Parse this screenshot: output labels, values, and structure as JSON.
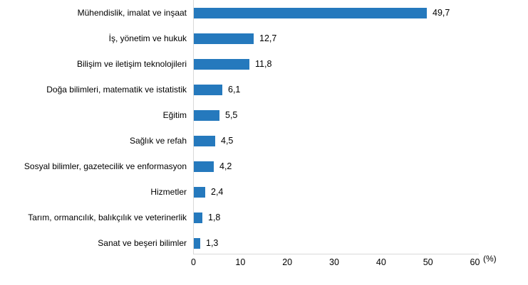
{
  "chart_data": {
    "type": "bar",
    "orientation": "horizontal",
    "title": "",
    "categories": [
      "Mühendislik, imalat ve inşaat",
      "İş, yönetim ve hukuk",
      "Bilişim ve iletişim teknolojileri",
      "Doğa bilimleri, matematik ve istatistik",
      "Eğitim",
      "Sağlık ve refah",
      "Sosyal bilimler, gazetecilik ve enformasyon",
      "Hizmetler",
      "Tarım, ormancılık, balıkçılık ve veterinerlik",
      "Sanat ve beşeri bilimler"
    ],
    "values": [
      49.7,
      12.7,
      11.8,
      6.1,
      5.5,
      4.5,
      4.2,
      2.4,
      1.8,
      1.3
    ],
    "value_labels": [
      "49,7",
      "12,7",
      "11,8",
      "6,1",
      "5,5",
      "4,5",
      "4,2",
      "2,4",
      "1,8",
      "1,3"
    ],
    "xlabel": "(%)",
    "xticks": [
      0,
      10,
      20,
      30,
      40,
      50,
      60
    ],
    "xtick_labels": [
      "0",
      "10",
      "20",
      "30",
      "40",
      "50",
      "60"
    ],
    "xlim": [
      0,
      60
    ],
    "grid": false,
    "legend_position": "none",
    "colors": {
      "bar": "#2579bd",
      "axis": "#d9d9d9",
      "text": "#000000",
      "background": "#ffffff"
    }
  }
}
